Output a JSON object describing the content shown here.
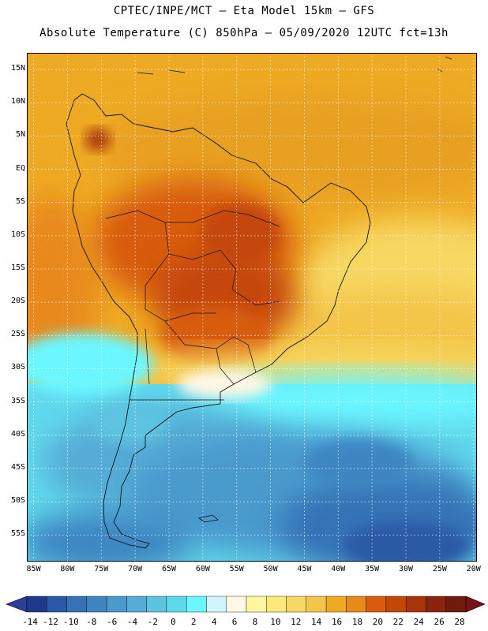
{
  "header": {
    "line1": "CPTEC/INPE/MCT –  Eta Model 15km – GFS",
    "line2": "Absolute Temperature (C) 850hPa – 05/09/2020 12UTC fct=13h"
  },
  "map": {
    "lat_ticks": [
      {
        "label": "15N",
        "lat": 15
      },
      {
        "label": "10N",
        "lat": 10
      },
      {
        "label": "5N",
        "lat": 5
      },
      {
        "label": "EQ",
        "lat": 0
      },
      {
        "label": "5S",
        "lat": -5
      },
      {
        "label": "10S",
        "lat": -10
      },
      {
        "label": "15S",
        "lat": -15
      },
      {
        "label": "20S",
        "lat": -20
      },
      {
        "label": "25S",
        "lat": -25
      },
      {
        "label": "30S",
        "lat": -30
      },
      {
        "label": "35S",
        "lat": -35
      },
      {
        "label": "40S",
        "lat": -40
      },
      {
        "label": "45S",
        "lat": -45
      },
      {
        "label": "50S",
        "lat": -50
      },
      {
        "label": "55S",
        "lat": -55
      }
    ],
    "lon_ticks": [
      {
        "label": "85W",
        "lon": -85
      },
      {
        "label": "80W",
        "lon": -80
      },
      {
        "label": "75W",
        "lon": -75
      },
      {
        "label": "70W",
        "lon": -70
      },
      {
        "label": "65W",
        "lon": -65
      },
      {
        "label": "60W",
        "lon": -60
      },
      {
        "label": "55W",
        "lon": -55
      },
      {
        "label": "50W",
        "lon": -50
      },
      {
        "label": "45W",
        "lon": -45
      },
      {
        "label": "40W",
        "lon": -40
      },
      {
        "label": "35W",
        "lon": -35
      },
      {
        "label": "30W",
        "lon": -30
      },
      {
        "label": "25W",
        "lon": -25
      },
      {
        "label": "20W",
        "lon": -20
      }
    ],
    "lon_range": [
      -86,
      -19.5
    ],
    "lat_range": [
      -59,
      17.5
    ]
  },
  "colorbar": {
    "labels": [
      "-14",
      "-12",
      "-10",
      "-8",
      "-6",
      "-4",
      "-2",
      "0",
      "2",
      "4",
      "6",
      "8",
      "10",
      "12",
      "14",
      "16",
      "18",
      "20",
      "22",
      "24",
      "26",
      "28"
    ],
    "colors": [
      "#1f3a8c",
      "#2a5aa6",
      "#3572b6",
      "#3d86c2",
      "#4a9acd",
      "#55acd6",
      "#5dc3e0",
      "#60d8ec",
      "#6af7ff",
      "#d0f6fb",
      "#fff8e6",
      "#fff7a0",
      "#fbe97c",
      "#f7d862",
      "#f3c54a",
      "#eeaa24",
      "#e8891c",
      "#d85c0c",
      "#c4470a",
      "#a8340a",
      "#8a2410",
      "#701b0e"
    ],
    "under_color": "#2a3f9a",
    "over_color": "#7a1018"
  }
}
